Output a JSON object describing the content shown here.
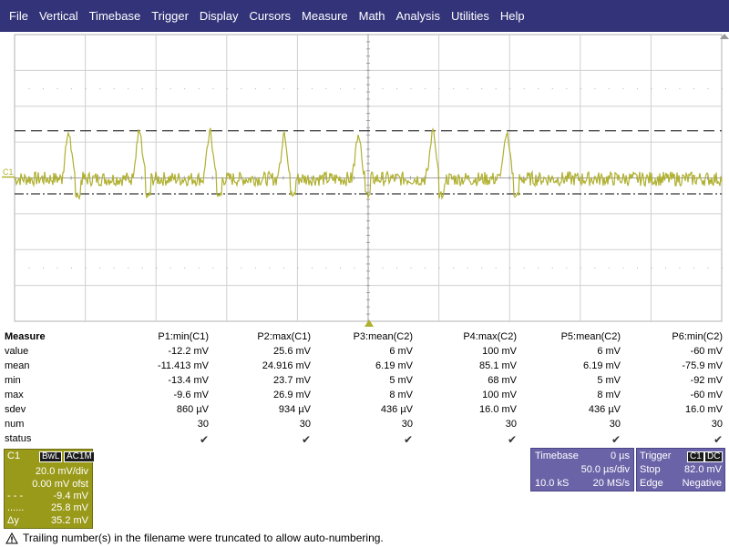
{
  "menu": [
    "File",
    "Vertical",
    "Timebase",
    "Trigger",
    "Display",
    "Cursors",
    "Measure",
    "Math",
    "Analysis",
    "Utilities",
    "Help"
  ],
  "scope": {
    "channel_label": "C1",
    "trace_color": "#b0b030",
    "pulse_times_divs": [
      0.75,
      1.75,
      2.75,
      3.8,
      4.85,
      5.9,
      6.95
    ],
    "vertical_divs": 8,
    "horizontal_divs": 10,
    "volts_per_div_mV": 20,
    "cursor_high_mV": 25.8,
    "cursor_low_mV": -9.4
  },
  "measure": {
    "header_label": "Measure",
    "columns": [
      "P1:min(C1)",
      "P2:max(C1)",
      "P3:mean(C2)",
      "P4:max(C2)",
      "P5:mean(C2)",
      "P6:min(C2)"
    ],
    "rows": [
      {
        "label": "value",
        "cells": [
          "-12.2 mV",
          "25.6 mV",
          "6 mV",
          "100 mV",
          "6 mV",
          "-60 mV"
        ]
      },
      {
        "label": "mean",
        "cells": [
          "-11.413 mV",
          "24.916 mV",
          "6.19 mV",
          "85.1 mV",
          "6.19 mV",
          "-75.9 mV"
        ]
      },
      {
        "label": "min",
        "cells": [
          "-13.4 mV",
          "23.7 mV",
          "5 mV",
          "68 mV",
          "5 mV",
          "-92 mV"
        ]
      },
      {
        "label": "max",
        "cells": [
          "-9.6 mV",
          "26.9 mV",
          "8 mV",
          "100 mV",
          "8 mV",
          "-60 mV"
        ]
      },
      {
        "label": "sdev",
        "cells": [
          "860 µV",
          "934 µV",
          "436 µV",
          "16.0 mV",
          "436 µV",
          "16.0 mV"
        ]
      },
      {
        "label": "num",
        "cells": [
          "30",
          "30",
          "30",
          "30",
          "30",
          "30"
        ]
      },
      {
        "label": "status",
        "cells": [
          "✔",
          "✔",
          "✔",
          "✔",
          "✔",
          "✔"
        ]
      }
    ]
  },
  "c1box": {
    "title": "C1",
    "tag1": "BwL",
    "tag2": "AC1M",
    "vdiv": "20.0 mV/div",
    "offset": "0.00 mV ofst",
    "cur1_label": "- - -",
    "cur1_value": "-9.4 mV",
    "cur2_label": "......",
    "cur2_value": "25.8 mV",
    "delta_label": "Δy",
    "delta_value": "35.2 mV"
  },
  "timebase": {
    "title": "Timebase",
    "delay": "0 µs",
    "tdiv": "50.0 µs/div",
    "samples": "10.0 kS",
    "rate": "20 MS/s"
  },
  "trigger": {
    "title": "Trigger",
    "tag1": "C1",
    "tag2": "DC",
    "mode": "Stop",
    "level": "82.0 mV",
    "type": "Edge",
    "slope": "Negative"
  },
  "status": {
    "message": "Trailing number(s) in the filename were truncated to allow auto-numbering."
  }
}
